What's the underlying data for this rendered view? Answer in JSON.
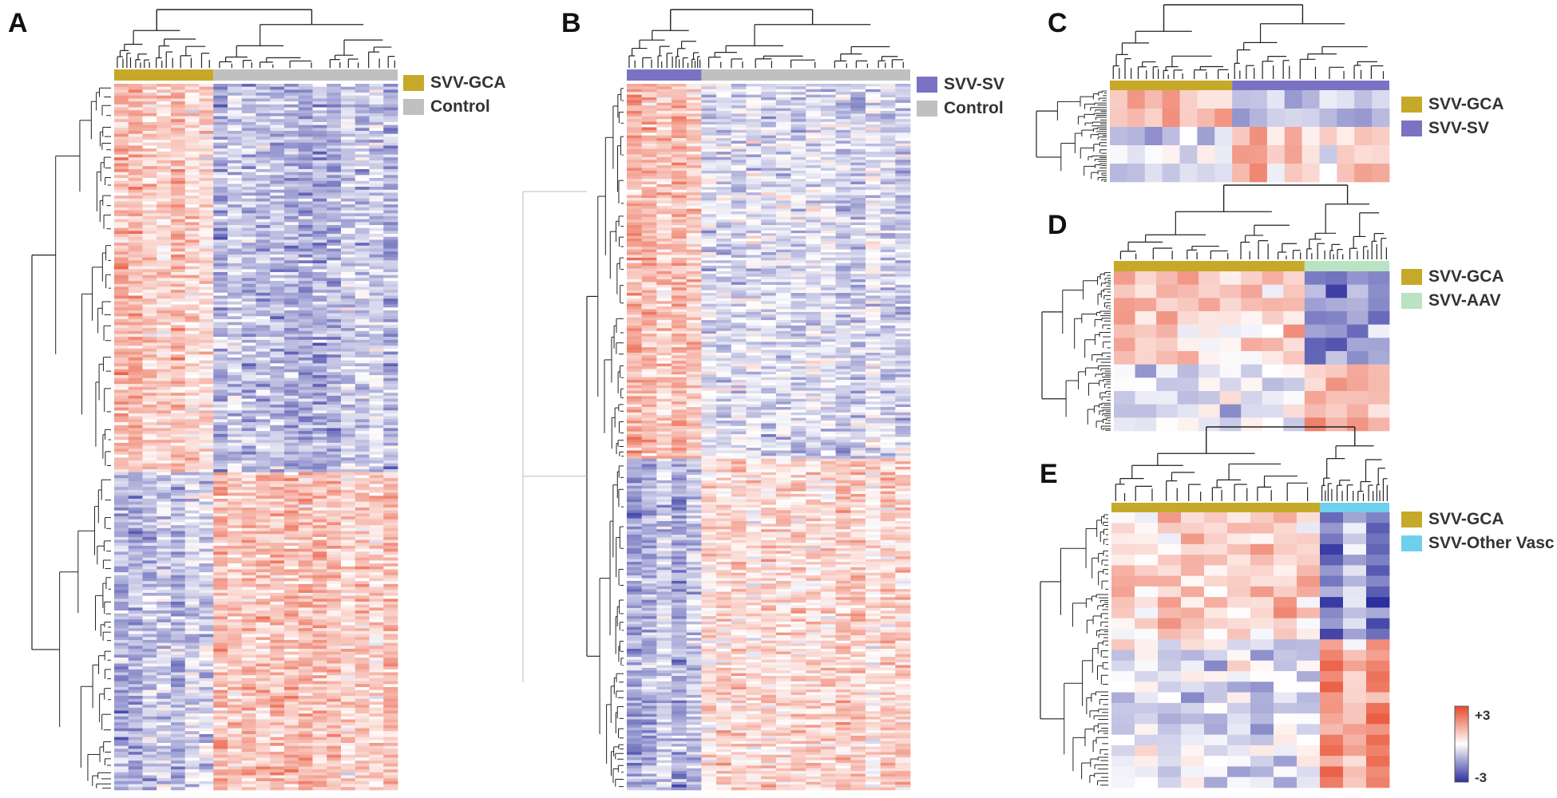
{
  "chart_data": [
    {
      "panel": "A",
      "type": "heatmap",
      "rows": 240,
      "groups": [
        {
          "name": "SVV-GCA",
          "color": "#c7a92a",
          "columns": 7
        },
        {
          "name": "Control",
          "color": "#c0c0c0",
          "columns": 13
        }
      ],
      "row_clusters": [
        0.55,
        0.45
      ],
      "pattern": [
        [
          1,
          -1
        ],
        [
          -1,
          1
        ]
      ]
    },
    {
      "panel": "B",
      "type": "heatmap",
      "rows": 260,
      "groups": [
        {
          "name": "SVV-SV",
          "color": "#7b72c4",
          "columns": 5
        },
        {
          "name": "Control",
          "color": "#c0c0c0",
          "columns": 14
        }
      ],
      "row_clusters": [
        0.53,
        0.47
      ],
      "pattern": [
        [
          1,
          -0.6
        ],
        [
          -1,
          0.7
        ]
      ]
    },
    {
      "panel": "C",
      "type": "heatmap",
      "rows": 5,
      "groups": [
        {
          "name": "SVV-GCA",
          "color": "#c7a92a",
          "columns": 7
        },
        {
          "name": "SVV-SV",
          "color": "#7b72c4",
          "columns": 9
        }
      ],
      "row_clusters": [
        0.4,
        0.6
      ],
      "pattern": [
        [
          1,
          -1
        ],
        [
          -0.6,
          0.9
        ]
      ]
    },
    {
      "panel": "D",
      "type": "heatmap",
      "rows": 12,
      "groups": [
        {
          "name": "SVV-GCA",
          "color": "#c7a92a",
          "columns": 9
        },
        {
          "name": "SVV-AAV",
          "color": "#b9e3c3",
          "columns": 4
        }
      ],
      "row_clusters": [
        0.62,
        0.38
      ],
      "pattern": [
        [
          0.9,
          -1.8
        ],
        [
          -0.5,
          1.3
        ]
      ]
    },
    {
      "panel": "E",
      "type": "heatmap",
      "rows": 26,
      "groups": [
        {
          "name": "SVV-GCA",
          "color": "#c7a92a",
          "columns": 9
        },
        {
          "name": "SVV-Other Vasc",
          "color": "#6fd0ee",
          "columns": 3
        }
      ],
      "row_clusters": [
        0.45,
        0.55
      ],
      "pattern": [
        [
          0.9,
          -1.9
        ],
        [
          -0.5,
          1.9
        ]
      ]
    }
  ],
  "color_scale": {
    "max_label": "+3",
    "min_label": "-3",
    "low": "#2c2f9e",
    "mid": "#ffffff",
    "high": "#e8492b"
  }
}
